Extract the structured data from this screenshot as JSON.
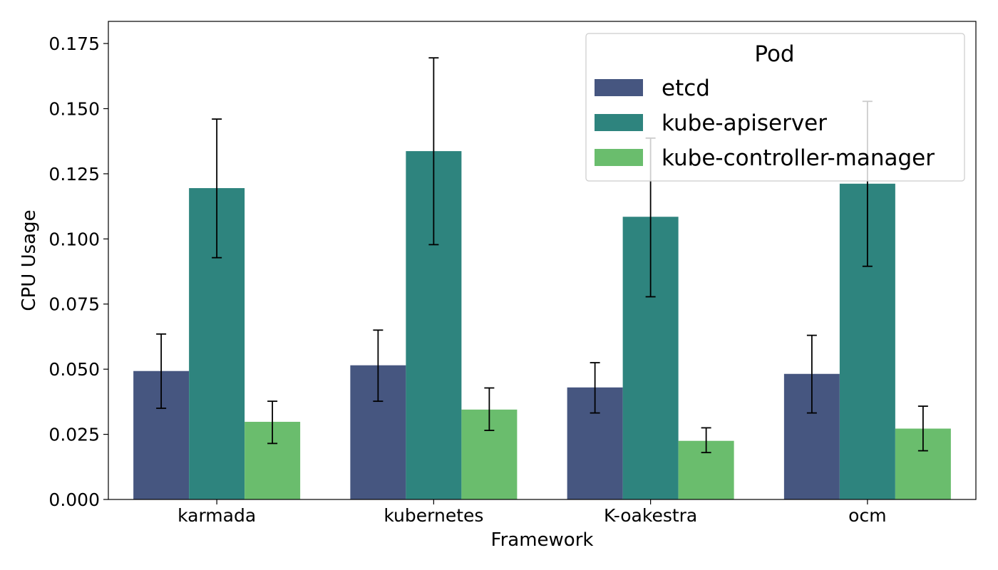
{
  "chart_data": {
    "type": "bar",
    "xlabel": "Framework",
    "ylabel": "CPU Usage",
    "categories": [
      "karmada",
      "kubernetes",
      "K-oakestra",
      "ocm"
    ],
    "ylim": [
      0,
      0.1835
    ],
    "yticks": [
      "0.000",
      "0.025",
      "0.050",
      "0.075",
      "0.100",
      "0.125",
      "0.150",
      "0.175"
    ],
    "grid": false,
    "legend": {
      "title": "Pod",
      "position": "top-right"
    },
    "series": [
      {
        "name": "etcd",
        "color": "#465680",
        "values": [
          0.0493,
          0.0515,
          0.043,
          0.0482
        ],
        "error_low": [
          0.035,
          0.0377,
          0.0332,
          0.0332
        ],
        "error_high": [
          0.0635,
          0.065,
          0.0525,
          0.063
        ]
      },
      {
        "name": "kube-apiserver",
        "color": "#2e847e",
        "values": [
          0.1195,
          0.1337,
          0.1085,
          0.1212
        ],
        "error_low": [
          0.0928,
          0.0978,
          0.0778,
          0.0895
        ],
        "error_high": [
          0.146,
          0.1695,
          0.1387,
          0.1528
        ]
      },
      {
        "name": "kube-controller-manager",
        "color": "#6abd6d",
        "values": [
          0.0298,
          0.0345,
          0.0225,
          0.0272
        ],
        "error_low": [
          0.0215,
          0.0265,
          0.018,
          0.0187
        ],
        "error_high": [
          0.0377,
          0.0428,
          0.0275,
          0.0358
        ]
      }
    ]
  }
}
